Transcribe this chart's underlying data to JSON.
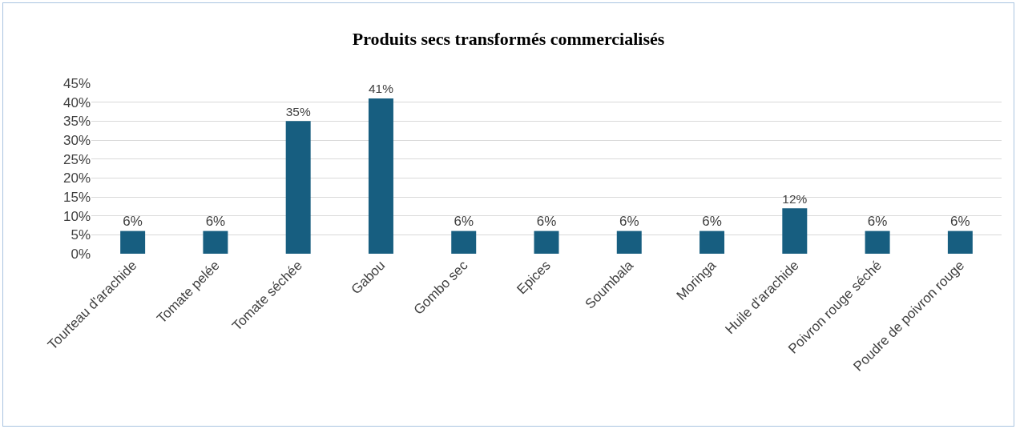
{
  "chart_data": {
    "type": "bar",
    "title": "Produits secs transformés commercialisés",
    "categories": [
      "Tourteau d'arachide",
      "Tomate pelée",
      "Tomate séchée",
      "Gabou",
      "Gombo sec",
      "Epices",
      "Soumbala",
      "Moringa",
      "Huile d'arachide",
      "Poivron rouge séché",
      "Poudre de poivron rouge"
    ],
    "values": [
      6,
      6,
      35,
      41,
      6,
      6,
      6,
      6,
      12,
      6,
      6
    ],
    "value_labels": [
      "6%",
      "6%",
      "35%",
      "41%",
      "6%",
      "6%",
      "6%",
      "6%",
      "12%",
      "6%",
      "6%"
    ],
    "color": "#175e80",
    "ylim": [
      0,
      45
    ],
    "yticks": [
      {
        "value": 0,
        "label": "0%"
      },
      {
        "value": 5,
        "label": "5%"
      },
      {
        "value": 10,
        "label": "10%"
      },
      {
        "value": 15,
        "label": "15%"
      },
      {
        "value": 20,
        "label": "20%"
      },
      {
        "value": 25,
        "label": "25%"
      },
      {
        "value": 30,
        "label": "30%"
      },
      {
        "value": 35,
        "label": "35%"
      },
      {
        "value": 40,
        "label": "40%"
      },
      {
        "value": 45,
        "label": "45%"
      }
    ],
    "grid": "y",
    "legend": false
  }
}
